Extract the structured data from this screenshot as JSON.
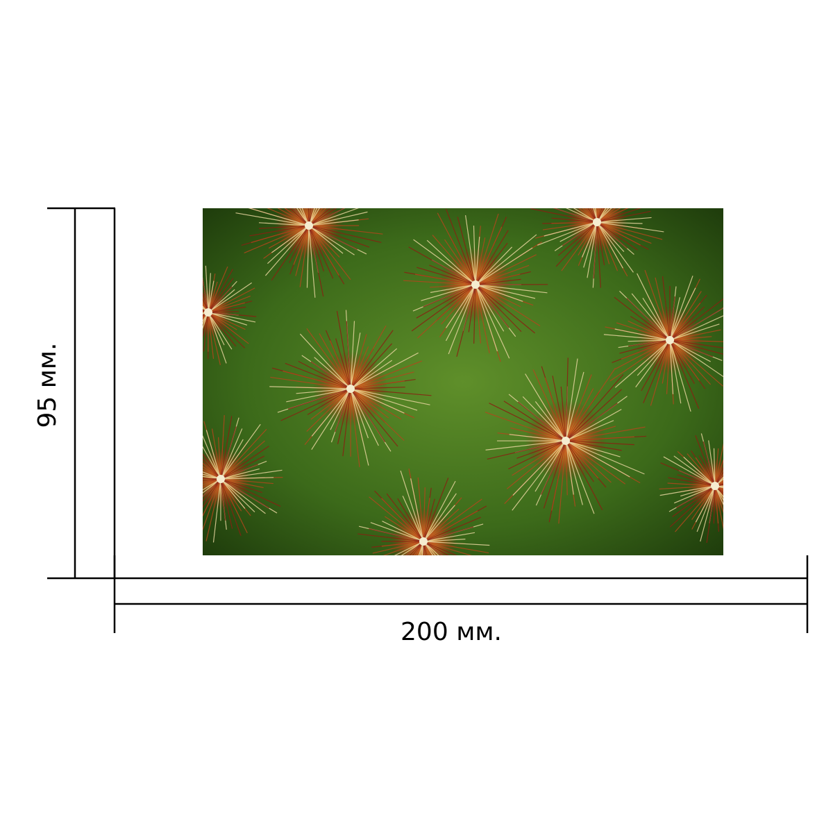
{
  "height_label": "95 мм.",
  "width_label": "200 мм."
}
